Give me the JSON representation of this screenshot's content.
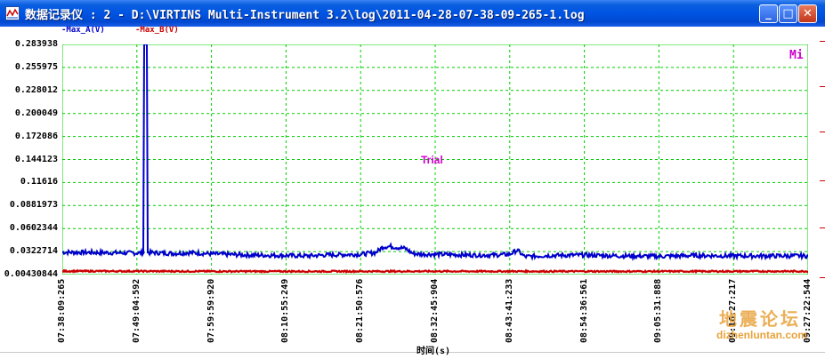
{
  "window": {
    "title": "数据记录仪 : 2 - D:\\VIRTINS Multi-Instrument 3.2\\log\\2011-04-28-07-38-09-265-1.log",
    "controls": {
      "minimize": "_",
      "maximize": "□",
      "close": "✕"
    }
  },
  "legend": [
    {
      "label": "-Max_A(V)",
      "color": "#0000cc"
    },
    {
      "label": "-Max_B(V)",
      "color": "#cc0000"
    }
  ],
  "overlay": {
    "trial": "Trial",
    "mi": "Mi"
  },
  "watermark": {
    "chinese": "地震论坛",
    "url": "dizhenluntan.com"
  },
  "chart_data": {
    "type": "line",
    "xlabel": "时间(s)",
    "ylabel": "",
    "ylim": [
      0.00430844,
      0.283938
    ],
    "y_ticks": [
      "0.283938",
      "0.255975",
      "0.228012",
      "0.200049",
      "0.172086",
      "0.144123",
      "0.11616",
      "0.0881973",
      "0.0602344",
      "0.0322714",
      "0.00430844"
    ],
    "x_ticks": [
      "07:38:09:265",
      "07:49:04:592",
      "07:59:59:920",
      "08:10:55:249",
      "08:21:50:576",
      "08:32:45:904",
      "08:43:41:233",
      "08:54:36:561",
      "09:05:31:888",
      "09:16:27:217",
      "09:27:22:544"
    ],
    "grid": true,
    "grid_color": "#00cc00",
    "series": [
      {
        "name": "Max_A(V)",
        "color": "#0000cc",
        "x_fraction": [
          0,
          0.05,
          0.1,
          0.11,
          0.112,
          0.114,
          0.12,
          0.15,
          0.17,
          0.2,
          0.25,
          0.3,
          0.33,
          0.35,
          0.4,
          0.42,
          0.43,
          0.44,
          0.46,
          0.47,
          0.48,
          0.5,
          0.55,
          0.58,
          0.6,
          0.61,
          0.62,
          0.65,
          0.7,
          0.75,
          0.8,
          0.85,
          0.9,
          0.95,
          1
        ],
        "values": [
          0.0315,
          0.031,
          0.0305,
          0.031,
          0.284,
          0.031,
          0.031,
          0.03,
          0.031,
          0.0295,
          0.028,
          0.0275,
          0.027,
          0.028,
          0.029,
          0.031,
          0.038,
          0.0385,
          0.036,
          0.03,
          0.029,
          0.029,
          0.028,
          0.028,
          0.029,
          0.034,
          0.026,
          0.0275,
          0.028,
          0.027,
          0.0265,
          0.0275,
          0.027,
          0.027,
          0.027
        ]
      },
      {
        "name": "Max_B(V)",
        "color": "#cc0000",
        "x_fraction": [
          0,
          0.25,
          0.5,
          0.75,
          1
        ],
        "values": [
          0.0085,
          0.0082,
          0.0083,
          0.0082,
          0.0083
        ]
      }
    ]
  }
}
